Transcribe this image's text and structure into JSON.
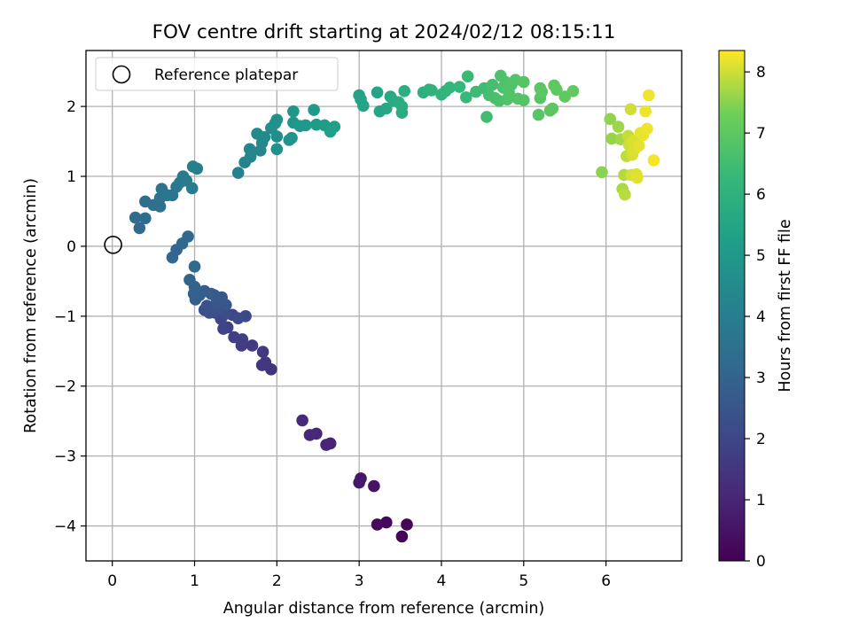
{
  "chart_data": {
    "type": "scatter",
    "title": "FOV centre drift starting at 2024/02/12 08:15:11",
    "xlabel": "Angular distance from reference (arcmin)",
    "ylabel": "Rotation from reference (arcmin)",
    "xlim": [
      -0.32,
      6.92
    ],
    "ylim": [
      -4.5,
      2.8
    ],
    "xticks": [
      0,
      1,
      2,
      3,
      4,
      5,
      6
    ],
    "yticks": [
      -4,
      -3,
      -2,
      -1,
      0,
      1,
      2
    ],
    "grid": true,
    "legend": {
      "position": "top-left",
      "entries": [
        "Reference platepar"
      ]
    },
    "reference_point": {
      "x": 0,
      "y": 0
    },
    "colorbar": {
      "label": "Hours from first FF file",
      "colormap": "viridis",
      "range": [
        0,
        8.35
      ],
      "ticks": [
        0,
        1,
        2,
        3,
        4,
        5,
        6,
        7,
        8
      ]
    },
    "series": [
      {
        "points": [
          {
            "x": 3.52,
            "y": -4.15,
            "h": 0.1
          },
          {
            "x": 3.58,
            "y": -3.98,
            "h": 0.15
          },
          {
            "x": 3.33,
            "y": -3.95,
            "h": 0.2
          },
          {
            "x": 3.22,
            "y": -3.98,
            "h": 0.25
          },
          {
            "x": 3.18,
            "y": -3.43,
            "h": 0.55
          },
          {
            "x": 3.02,
            "y": -3.32,
            "h": 0.6
          },
          {
            "x": 3.0,
            "y": -3.38,
            "h": 0.65
          },
          {
            "x": 2.65,
            "y": -2.82,
            "h": 0.95
          },
          {
            "x": 2.6,
            "y": -2.84,
            "h": 1.0
          },
          {
            "x": 2.48,
            "y": -2.68,
            "h": 1.05
          },
          {
            "x": 2.4,
            "y": -2.7,
            "h": 1.1
          },
          {
            "x": 2.31,
            "y": -2.49,
            "h": 1.15
          },
          {
            "x": 1.93,
            "y": -1.76,
            "h": 1.45
          },
          {
            "x": 1.86,
            "y": -1.66,
            "h": 1.5
          },
          {
            "x": 1.82,
            "y": -1.7,
            "h": 1.55
          },
          {
            "x": 1.83,
            "y": -1.51,
            "h": 1.6
          },
          {
            "x": 1.7,
            "y": -1.42,
            "h": 1.65
          },
          {
            "x": 1.57,
            "y": -1.42,
            "h": 1.7
          },
          {
            "x": 1.58,
            "y": -1.33,
            "h": 1.75
          },
          {
            "x": 1.48,
            "y": -1.3,
            "h": 1.8
          },
          {
            "x": 1.4,
            "y": -1.16,
            "h": 1.85
          },
          {
            "x": 1.35,
            "y": -1.18,
            "h": 1.9
          },
          {
            "x": 1.32,
            "y": -1.04,
            "h": 1.95
          },
          {
            "x": 1.46,
            "y": -0.98,
            "h": 2.0
          },
          {
            "x": 1.62,
            "y": -1.0,
            "h": 2.05
          },
          {
            "x": 1.53,
            "y": -1.03,
            "h": 2.1
          },
          {
            "x": 1.37,
            "y": -0.97,
            "h": 2.15
          },
          {
            "x": 1.25,
            "y": -0.95,
            "h": 2.2
          },
          {
            "x": 1.18,
            "y": -0.95,
            "h": 2.25
          },
          {
            "x": 1.12,
            "y": -0.91,
            "h": 2.3
          },
          {
            "x": 1.15,
            "y": -0.85,
            "h": 2.35
          },
          {
            "x": 1.22,
            "y": -0.88,
            "h": 2.4
          },
          {
            "x": 1.3,
            "y": -0.87,
            "h": 2.45
          },
          {
            "x": 1.38,
            "y": -0.84,
            "h": 2.5
          },
          {
            "x": 1.33,
            "y": -0.73,
            "h": 2.55
          },
          {
            "x": 1.27,
            "y": -0.8,
            "h": 2.6
          },
          {
            "x": 1.24,
            "y": -0.7,
            "h": 2.65
          },
          {
            "x": 1.2,
            "y": -0.68,
            "h": 2.7
          },
          {
            "x": 1.12,
            "y": -0.64,
            "h": 2.75
          },
          {
            "x": 1.06,
            "y": -0.7,
            "h": 2.8
          },
          {
            "x": 1.01,
            "y": -0.76,
            "h": 2.85
          },
          {
            "x": 0.99,
            "y": -0.68,
            "h": 2.9
          },
          {
            "x": 1.0,
            "y": -0.58,
            "h": 2.95
          },
          {
            "x": 0.94,
            "y": -0.48,
            "h": 3.0
          },
          {
            "x": 0.73,
            "y": -0.16,
            "h": 3.05
          },
          {
            "x": 0.78,
            "y": -0.05,
            "h": 3.08
          },
          {
            "x": 0.85,
            "y": 0.04,
            "h": 3.12
          },
          {
            "x": 0.92,
            "y": 0.14,
            "h": 3.16
          },
          {
            "x": 1.0,
            "y": -0.29,
            "h": 3.2
          },
          {
            "x": 0.33,
            "y": 0.26,
            "h": 3.25
          },
          {
            "x": 0.28,
            "y": 0.41,
            "h": 3.3
          },
          {
            "x": 0.4,
            "y": 0.4,
            "h": 3.35
          },
          {
            "x": 0.4,
            "y": 0.64,
            "h": 3.4
          },
          {
            "x": 0.5,
            "y": 0.59,
            "h": 3.45
          },
          {
            "x": 0.58,
            "y": 0.57,
            "h": 3.5
          },
          {
            "x": 0.58,
            "y": 0.69,
            "h": 3.55
          },
          {
            "x": 0.6,
            "y": 0.82,
            "h": 3.6
          },
          {
            "x": 0.67,
            "y": 0.73,
            "h": 3.65
          },
          {
            "x": 0.73,
            "y": 0.73,
            "h": 3.7
          },
          {
            "x": 0.78,
            "y": 0.85,
            "h": 3.75
          },
          {
            "x": 0.82,
            "y": 0.91,
            "h": 3.8
          },
          {
            "x": 0.86,
            "y": 1.0,
            "h": 3.85
          },
          {
            "x": 0.9,
            "y": 0.94,
            "h": 3.9
          },
          {
            "x": 0.97,
            "y": 0.83,
            "h": 3.95
          },
          {
            "x": 0.98,
            "y": 1.14,
            "h": 4.0
          },
          {
            "x": 1.03,
            "y": 1.11,
            "h": 4.05
          },
          {
            "x": 1.53,
            "y": 1.05,
            "h": 4.15
          },
          {
            "x": 1.61,
            "y": 1.2,
            "h": 4.2
          },
          {
            "x": 1.68,
            "y": 1.28,
            "h": 4.25
          },
          {
            "x": 1.67,
            "y": 1.39,
            "h": 4.3
          },
          {
            "x": 1.8,
            "y": 1.37,
            "h": 4.35
          },
          {
            "x": 1.82,
            "y": 1.48,
            "h": 4.4
          },
          {
            "x": 1.85,
            "y": 1.56,
            "h": 4.45
          },
          {
            "x": 1.76,
            "y": 1.61,
            "h": 4.5
          },
          {
            "x": 1.93,
            "y": 1.69,
            "h": 4.55
          },
          {
            "x": 2.0,
            "y": 1.57,
            "h": 4.6
          },
          {
            "x": 2.0,
            "y": 1.39,
            "h": 4.65
          },
          {
            "x": 1.98,
            "y": 1.76,
            "h": 4.7
          },
          {
            "x": 2.0,
            "y": 1.81,
            "h": 4.75
          },
          {
            "x": 2.15,
            "y": 1.52,
            "h": 4.8
          },
          {
            "x": 2.18,
            "y": 1.55,
            "h": 4.85
          },
          {
            "x": 2.2,
            "y": 1.77,
            "h": 4.9
          },
          {
            "x": 2.2,
            "y": 1.93,
            "h": 4.95
          },
          {
            "x": 2.28,
            "y": 1.72,
            "h": 5.0
          },
          {
            "x": 2.35,
            "y": 1.73,
            "h": 5.05
          },
          {
            "x": 2.45,
            "y": 1.95,
            "h": 5.1
          },
          {
            "x": 2.48,
            "y": 1.74,
            "h": 5.15
          },
          {
            "x": 2.58,
            "y": 1.73,
            "h": 5.2
          },
          {
            "x": 2.65,
            "y": 1.64,
            "h": 5.25
          },
          {
            "x": 2.7,
            "y": 1.71,
            "h": 5.3
          },
          {
            "x": 3.0,
            "y": 2.16,
            "h": 5.35
          },
          {
            "x": 3.02,
            "y": 2.1,
            "h": 5.4
          },
          {
            "x": 3.05,
            "y": 2.01,
            "h": 5.45
          },
          {
            "x": 3.22,
            "y": 2.2,
            "h": 5.5
          },
          {
            "x": 3.25,
            "y": 1.93,
            "h": 5.55
          },
          {
            "x": 3.33,
            "y": 1.97,
            "h": 5.6
          },
          {
            "x": 3.38,
            "y": 2.14,
            "h": 5.65
          },
          {
            "x": 3.42,
            "y": 2.08,
            "h": 5.7
          },
          {
            "x": 3.48,
            "y": 2.06,
            "h": 5.75
          },
          {
            "x": 3.52,
            "y": 1.91,
            "h": 5.8
          },
          {
            "x": 3.52,
            "y": 2.0,
            "h": 5.85
          },
          {
            "x": 3.55,
            "y": 2.22,
            "h": 5.9
          },
          {
            "x": 3.78,
            "y": 2.2,
            "h": 5.95
          },
          {
            "x": 3.85,
            "y": 2.24,
            "h": 6.0
          },
          {
            "x": 3.88,
            "y": 2.23,
            "h": 6.05
          },
          {
            "x": 4.0,
            "y": 2.17,
            "h": 6.1
          },
          {
            "x": 4.05,
            "y": 2.22,
            "h": 6.15
          },
          {
            "x": 4.1,
            "y": 2.27,
            "h": 6.2
          },
          {
            "x": 4.22,
            "y": 2.28,
            "h": 6.25
          },
          {
            "x": 4.3,
            "y": 2.13,
            "h": 6.3
          },
          {
            "x": 4.32,
            "y": 2.43,
            "h": 6.35
          },
          {
            "x": 4.42,
            "y": 2.21,
            "h": 6.4
          },
          {
            "x": 4.52,
            "y": 2.26,
            "h": 6.45
          },
          {
            "x": 4.55,
            "y": 1.85,
            "h": 6.5
          },
          {
            "x": 4.58,
            "y": 2.16,
            "h": 6.55
          },
          {
            "x": 4.62,
            "y": 2.31,
            "h": 6.6
          },
          {
            "x": 4.65,
            "y": 2.12,
            "h": 6.62
          },
          {
            "x": 4.7,
            "y": 2.08,
            "h": 6.65
          },
          {
            "x": 4.72,
            "y": 2.44,
            "h": 6.68
          },
          {
            "x": 4.75,
            "y": 2.27,
            "h": 6.7
          },
          {
            "x": 4.78,
            "y": 2.35,
            "h": 6.72
          },
          {
            "x": 4.8,
            "y": 2.1,
            "h": 6.74
          },
          {
            "x": 4.82,
            "y": 2.2,
            "h": 6.76
          },
          {
            "x": 4.85,
            "y": 2.31,
            "h": 6.78
          },
          {
            "x": 4.9,
            "y": 2.38,
            "h": 6.8
          },
          {
            "x": 4.93,
            "y": 2.11,
            "h": 6.82
          },
          {
            "x": 5.0,
            "y": 2.09,
            "h": 6.84
          },
          {
            "x": 5.0,
            "y": 2.35,
            "h": 6.86
          },
          {
            "x": 5.18,
            "y": 1.88,
            "h": 6.88
          },
          {
            "x": 5.2,
            "y": 2.12,
            "h": 6.9
          },
          {
            "x": 5.2,
            "y": 2.26,
            "h": 6.92
          },
          {
            "x": 5.22,
            "y": 2.21,
            "h": 6.94
          },
          {
            "x": 5.32,
            "y": 1.94,
            "h": 6.96
          },
          {
            "x": 5.35,
            "y": 1.97,
            "h": 6.98
          },
          {
            "x": 5.37,
            "y": 2.3,
            "h": 7.0
          },
          {
            "x": 5.4,
            "y": 2.24,
            "h": 7.02
          },
          {
            "x": 5.5,
            "y": 2.14,
            "h": 7.04
          },
          {
            "x": 5.6,
            "y": 2.22,
            "h": 7.06
          },
          {
            "x": 5.95,
            "y": 1.06,
            "h": 7.5
          },
          {
            "x": 6.05,
            "y": 1.82,
            "h": 7.55
          },
          {
            "x": 6.07,
            "y": 1.54,
            "h": 7.6
          },
          {
            "x": 6.15,
            "y": 1.71,
            "h": 7.65
          },
          {
            "x": 6.18,
            "y": 1.53,
            "h": 7.7
          },
          {
            "x": 6.2,
            "y": 0.82,
            "h": 7.75
          },
          {
            "x": 6.22,
            "y": 1.02,
            "h": 7.8
          },
          {
            "x": 6.23,
            "y": 0.74,
            "h": 7.85
          },
          {
            "x": 6.25,
            "y": 1.29,
            "h": 7.9
          },
          {
            "x": 6.27,
            "y": 1.58,
            "h": 7.95
          },
          {
            "x": 6.28,
            "y": 1.45,
            "h": 8.0
          },
          {
            "x": 6.3,
            "y": 1.96,
            "h": 8.02
          },
          {
            "x": 6.31,
            "y": 1.02,
            "h": 8.04
          },
          {
            "x": 6.32,
            "y": 1.31,
            "h": 8.06
          },
          {
            "x": 6.33,
            "y": 1.51,
            "h": 8.08
          },
          {
            "x": 6.35,
            "y": 1.39,
            "h": 8.1
          },
          {
            "x": 6.37,
            "y": 1.03,
            "h": 8.12
          },
          {
            "x": 6.38,
            "y": 0.98,
            "h": 8.14
          },
          {
            "x": 6.4,
            "y": 1.44,
            "h": 8.16
          },
          {
            "x": 6.42,
            "y": 1.62,
            "h": 8.18
          },
          {
            "x": 6.45,
            "y": 1.59,
            "h": 8.2
          },
          {
            "x": 6.48,
            "y": 1.93,
            "h": 8.22
          },
          {
            "x": 6.5,
            "y": 1.68,
            "h": 8.24
          },
          {
            "x": 6.52,
            "y": 2.16,
            "h": 8.26
          },
          {
            "x": 6.58,
            "y": 1.23,
            "h": 8.28
          }
        ]
      }
    ]
  }
}
